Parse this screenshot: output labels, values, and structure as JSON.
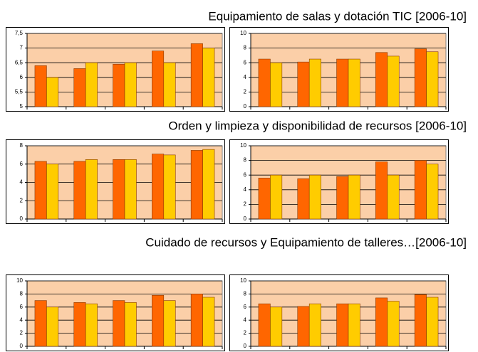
{
  "headings": [
    "Equipamiento de salas y dotación TIC [2006-10]",
    "Orden y limpieza y disponibilidad de recursos [2006-10]",
    "Cuidado de recursos y Equipamiento de talleres…[2006-10]"
  ],
  "chart_data": [
    {
      "type": "bar",
      "categories": [
        null,
        null,
        null,
        null,
        null
      ],
      "ylim": [
        5,
        7.5
      ],
      "yticks": [
        5,
        {
          "value": 5.5,
          "label": "5,5"
        },
        6,
        {
          "value": 6.5,
          "label": "6,5"
        },
        7,
        {
          "value": 7.5,
          "label": "7,5"
        }
      ],
      "grid": true,
      "series": [
        {
          "color": "#ff6600",
          "values": [
            6.4,
            6.3,
            6.45,
            6.9,
            7.15
          ]
        },
        {
          "color": "#ffcc00",
          "values": [
            6.0,
            6.5,
            6.5,
            6.5,
            7.0
          ]
        }
      ]
    },
    {
      "type": "bar",
      "categories": [
        null,
        null,
        null,
        null,
        null
      ],
      "ylim": [
        0,
        10
      ],
      "yticks": [
        0,
        2,
        4,
        6,
        8,
        10
      ],
      "grid": true,
      "series": [
        {
          "color": "#ff6600",
          "values": [
            6.5,
            6.1,
            6.5,
            7.4,
            7.9
          ]
        },
        {
          "color": "#ffcc00",
          "values": [
            6.0,
            6.5,
            6.5,
            6.9,
            7.5
          ]
        }
      ]
    },
    {
      "type": "bar",
      "categories": [
        null,
        null,
        null,
        null,
        null
      ],
      "ylim": [
        0,
        8
      ],
      "yticks": [
        0,
        2,
        4,
        6,
        8
      ],
      "grid": true,
      "series": [
        {
          "color": "#ff6600",
          "values": [
            6.3,
            6.3,
            6.5,
            7.1,
            7.5
          ]
        },
        {
          "color": "#ffcc00",
          "values": [
            6.0,
            6.5,
            6.5,
            7.0,
            7.6
          ]
        }
      ]
    },
    {
      "type": "bar",
      "categories": [
        null,
        null,
        null,
        null,
        null
      ],
      "ylim": [
        0,
        10
      ],
      "yticks": [
        0,
        2,
        4,
        6,
        8,
        10
      ],
      "grid": true,
      "series": [
        {
          "color": "#ff6600",
          "values": [
            5.6,
            5.5,
            5.8,
            7.8,
            8.0
          ]
        },
        {
          "color": "#ffcc00",
          "values": [
            6.0,
            6.0,
            6.0,
            6.0,
            7.5
          ]
        }
      ]
    },
    {
      "type": "bar",
      "categories": [
        null,
        null,
        null,
        null,
        null
      ],
      "ylim": [
        0,
        10
      ],
      "yticks": [
        0,
        2,
        4,
        6,
        8,
        10
      ],
      "grid": true,
      "series": [
        {
          "color": "#ff6600",
          "values": [
            7.0,
            6.7,
            7.0,
            7.8,
            8.0
          ]
        },
        {
          "color": "#ffcc00",
          "values": [
            6.0,
            6.5,
            6.7,
            7.0,
            7.5
          ]
        }
      ]
    },
    {
      "type": "bar",
      "categories": [
        null,
        null,
        null,
        null,
        null
      ],
      "ylim": [
        0,
        10
      ],
      "yticks": [
        0,
        2,
        4,
        6,
        8,
        10
      ],
      "grid": true,
      "series": [
        {
          "color": "#ff6600",
          "values": [
            6.5,
            6.1,
            6.5,
            7.4,
            7.9
          ]
        },
        {
          "color": "#ffcc00",
          "values": [
            6.0,
            6.5,
            6.5,
            6.9,
            7.5
          ]
        }
      ]
    }
  ]
}
